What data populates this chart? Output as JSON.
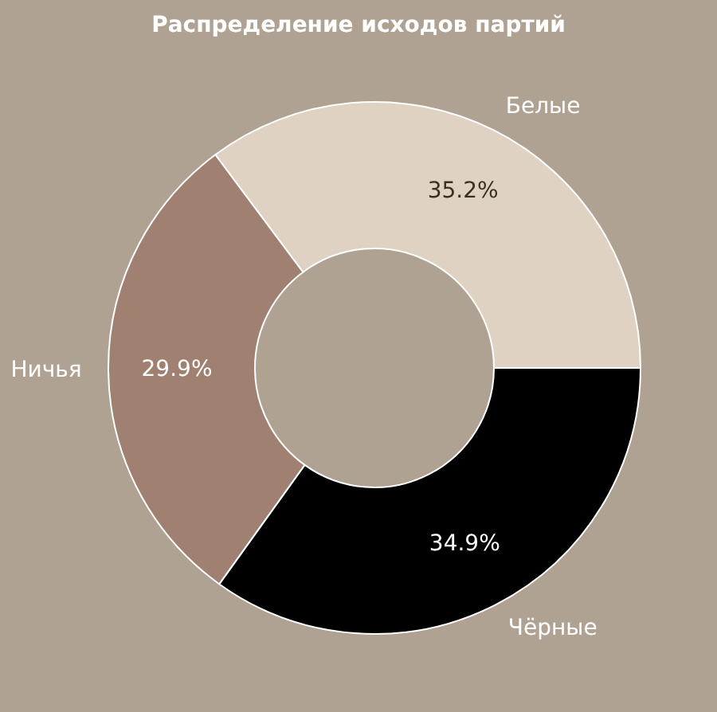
{
  "chart_data": {
    "type": "donut",
    "title": "Распределение исходов партий",
    "categories": [
      "Белые",
      "Ничья",
      "Чёрные"
    ],
    "values": [
      35.2,
      29.9,
      34.9
    ],
    "value_labels": [
      "35.2%",
      "29.9%",
      "34.9%"
    ],
    "colors": [
      "#e0d2c2",
      "#a08070",
      "#000000"
    ],
    "legend": false
  }
}
